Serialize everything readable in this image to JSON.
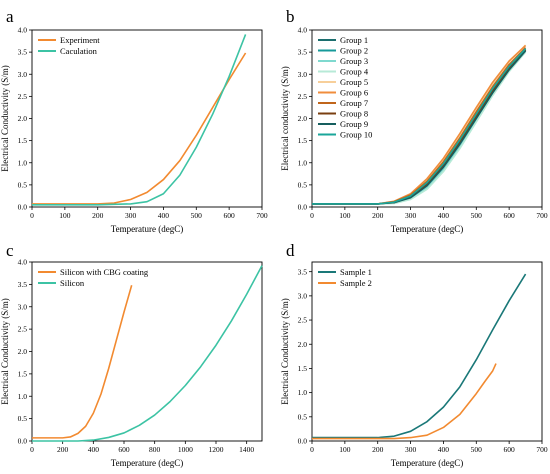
{
  "colors": {
    "orange": "#f28a30",
    "teal": "#3cc3a4",
    "group_colors": [
      "#1b6e6e",
      "#169a9a",
      "#7fd9cf",
      "#b7ead7",
      "#f7cf9a",
      "#f08d3c",
      "#c0651b",
      "#7a3f10",
      "#165e5e",
      "#1aa69a"
    ],
    "sample1": "#1a7878",
    "sample2": "#f28a30"
  },
  "chart_data": [
    {
      "panel_label": "a",
      "type": "line",
      "xlabel": "Temperature (degC)",
      "ylabel": "Electrical Conductivity (S/m)",
      "xlim": [
        0,
        700
      ],
      "ylim": [
        0,
        4.0
      ],
      "xticks": [
        0,
        100,
        200,
        300,
        400,
        500,
        600,
        700
      ],
      "yticks": [
        0.0,
        0.5,
        1.0,
        1.5,
        2.0,
        2.5,
        3.0,
        3.5,
        4.0
      ],
      "legend_position": "top-left",
      "series": [
        {
          "name": "Experiment",
          "color": "orange",
          "x": [
            0,
            100,
            200,
            250,
            300,
            350,
            400,
            450,
            500,
            550,
            600,
            650
          ],
          "y": [
            0.07,
            0.07,
            0.07,
            0.09,
            0.17,
            0.33,
            0.62,
            1.05,
            1.62,
            2.25,
            2.88,
            3.48
          ]
        },
        {
          "name": "Caculation",
          "color": "teal",
          "x": [
            0,
            100,
            200,
            250,
            300,
            350,
            400,
            450,
            500,
            550,
            600,
            650
          ],
          "y": [
            0.05,
            0.05,
            0.05,
            0.06,
            0.07,
            0.12,
            0.3,
            0.72,
            1.35,
            2.1,
            2.95,
            3.9
          ]
        }
      ]
    },
    {
      "panel_label": "b",
      "type": "line",
      "xlabel": "Temperature (degC)",
      "ylabel": "Electrical conductivity (S/m)",
      "xlim": [
        0,
        700
      ],
      "ylim": [
        0,
        4.0
      ],
      "xticks": [
        0,
        100,
        200,
        300,
        400,
        500,
        600,
        700
      ],
      "yticks": [
        0.0,
        0.5,
        1.0,
        1.5,
        2.0,
        2.5,
        3.0,
        3.5,
        4.0
      ],
      "legend_position": "top-left",
      "series": [
        {
          "name": "Group 1",
          "color_index": 0,
          "x": [
            0,
            200,
            250,
            300,
            350,
            400,
            450,
            500,
            550,
            600,
            650
          ],
          "y": [
            0.07,
            0.07,
            0.1,
            0.22,
            0.5,
            0.92,
            1.45,
            2.02,
            2.6,
            3.12,
            3.55
          ]
        },
        {
          "name": "Group 2",
          "color_index": 1,
          "x": [
            0,
            200,
            250,
            300,
            350,
            400,
            450,
            500,
            550,
            600,
            650
          ],
          "y": [
            0.07,
            0.07,
            0.11,
            0.24,
            0.54,
            0.97,
            1.5,
            2.08,
            2.65,
            3.15,
            3.57
          ]
        },
        {
          "name": "Group 3",
          "color_index": 2,
          "x": [
            0,
            200,
            250,
            300,
            350,
            400,
            450,
            500,
            550,
            600,
            650
          ],
          "y": [
            0.07,
            0.07,
            0.09,
            0.19,
            0.44,
            0.85,
            1.37,
            1.95,
            2.55,
            3.08,
            3.52
          ]
        },
        {
          "name": "Group 4",
          "color_index": 3,
          "x": [
            0,
            200,
            250,
            300,
            350,
            400,
            450,
            500,
            550,
            600,
            650
          ],
          "y": [
            0.07,
            0.07,
            0.08,
            0.17,
            0.4,
            0.8,
            1.32,
            1.92,
            2.52,
            3.06,
            3.5
          ]
        },
        {
          "name": "Group 5",
          "color_index": 4,
          "x": [
            0,
            200,
            250,
            300,
            350,
            400,
            450,
            500,
            550,
            600,
            650
          ],
          "y": [
            0.07,
            0.07,
            0.12,
            0.28,
            0.6,
            1.05,
            1.6,
            2.2,
            2.78,
            3.28,
            3.66
          ]
        },
        {
          "name": "Group 6",
          "color_index": 5,
          "x": [
            0,
            200,
            250,
            300,
            350,
            400,
            450,
            500,
            550,
            600,
            650
          ],
          "y": [
            0.07,
            0.07,
            0.13,
            0.3,
            0.64,
            1.1,
            1.66,
            2.25,
            2.82,
            3.3,
            3.65
          ]
        },
        {
          "name": "Group 7",
          "color_index": 6,
          "x": [
            0,
            200,
            250,
            300,
            350,
            400,
            450,
            500,
            550,
            600,
            650
          ],
          "y": [
            0.07,
            0.07,
            0.12,
            0.27,
            0.58,
            1.02,
            1.56,
            2.15,
            2.72,
            3.22,
            3.6
          ]
        },
        {
          "name": "Group 8",
          "color_index": 7,
          "x": [
            0,
            200,
            250,
            300,
            350,
            400,
            450,
            500,
            550,
            600,
            650
          ],
          "y": [
            0.07,
            0.07,
            0.1,
            0.23,
            0.52,
            0.95,
            1.48,
            2.05,
            2.62,
            3.13,
            3.55
          ]
        },
        {
          "name": "Group 9",
          "color_index": 8,
          "x": [
            0,
            200,
            250,
            300,
            350,
            400,
            450,
            500,
            550,
            600,
            650
          ],
          "y": [
            0.07,
            0.07,
            0.1,
            0.21,
            0.48,
            0.9,
            1.42,
            2.0,
            2.58,
            3.1,
            3.53
          ]
        },
        {
          "name": "Group 10",
          "color_index": 9,
          "x": [
            0,
            200,
            250,
            300,
            350,
            400,
            450,
            500,
            550,
            600,
            650
          ],
          "y": [
            0.07,
            0.07,
            0.11,
            0.25,
            0.55,
            0.98,
            1.52,
            2.1,
            2.68,
            3.18,
            3.58
          ]
        }
      ]
    },
    {
      "panel_label": "c",
      "type": "line",
      "xlabel": "Temperature (degC)",
      "ylabel": "Electrical Conductivity (S/m)",
      "xlim": [
        0,
        1500
      ],
      "ylim": [
        0,
        4.0
      ],
      "xticks": [
        0,
        200,
        400,
        600,
        800,
        1000,
        1200,
        1400
      ],
      "yticks": [
        0.0,
        0.5,
        1.0,
        1.5,
        2.0,
        2.5,
        3.0,
        3.5,
        4.0
      ],
      "legend_position": "top-left",
      "series": [
        {
          "name": "Silicon with CBG coating",
          "color": "orange",
          "x": [
            0,
            100,
            200,
            250,
            300,
            350,
            400,
            450,
            500,
            550,
            600,
            650
          ],
          "y": [
            0.07,
            0.07,
            0.07,
            0.09,
            0.17,
            0.33,
            0.62,
            1.05,
            1.62,
            2.25,
            2.88,
            3.48
          ]
        },
        {
          "name": "Silicon",
          "color": "teal",
          "x": [
            0,
            300,
            400,
            500,
            600,
            700,
            800,
            900,
            1000,
            1100,
            1200,
            1300,
            1400,
            1500
          ],
          "y": [
            0.0,
            0.0,
            0.02,
            0.08,
            0.18,
            0.35,
            0.58,
            0.88,
            1.24,
            1.66,
            2.14,
            2.68,
            3.28,
            3.92
          ]
        }
      ]
    },
    {
      "panel_label": "d",
      "type": "line",
      "xlabel": "Temperature (degC)",
      "ylabel": "Electrical Conductivity (S/m)",
      "xlim": [
        0,
        700
      ],
      "ylim": [
        0,
        3.7
      ],
      "xticks": [
        0,
        100,
        200,
        300,
        400,
        500,
        600,
        700
      ],
      "yticks": [
        0.0,
        0.5,
        1.0,
        1.5,
        2.0,
        2.5,
        3.0,
        3.5
      ],
      "legend_position": "top-left",
      "series": [
        {
          "name": "Sample 1",
          "color": "sample1",
          "x": [
            0,
            100,
            200,
            250,
            300,
            350,
            400,
            450,
            500,
            550,
            600,
            650
          ],
          "y": [
            0.07,
            0.07,
            0.07,
            0.1,
            0.2,
            0.4,
            0.7,
            1.12,
            1.68,
            2.3,
            2.9,
            3.45
          ]
        },
        {
          "name": "Sample 2",
          "color": "sample2",
          "x": [
            0,
            100,
            200,
            250,
            300,
            350,
            400,
            450,
            500,
            525,
            550,
            560
          ],
          "y": [
            0.05,
            0.05,
            0.05,
            0.05,
            0.07,
            0.12,
            0.28,
            0.55,
            0.98,
            1.22,
            1.45,
            1.6
          ]
        }
      ]
    }
  ]
}
